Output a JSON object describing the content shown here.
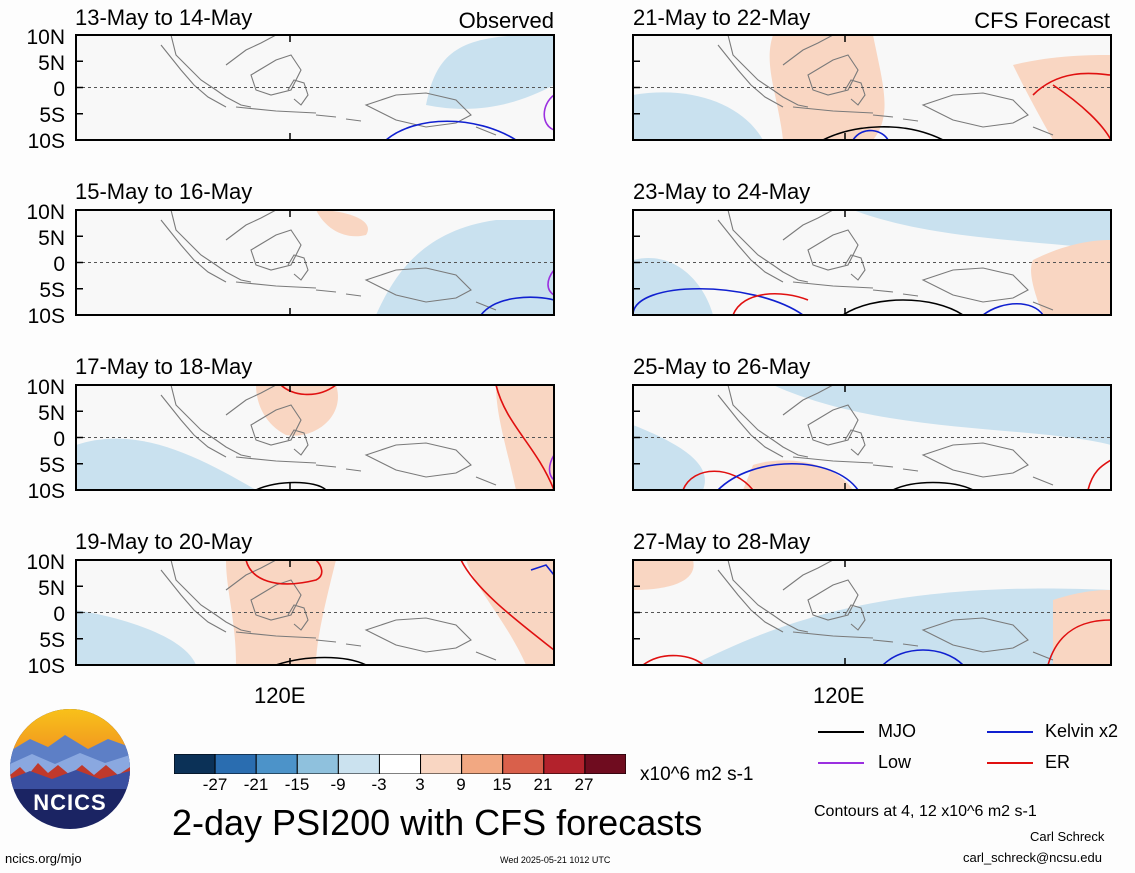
{
  "header": {
    "left_corner_label": "Observed",
    "right_corner_label": "CFS Forecast"
  },
  "lat_labels": [
    "10N",
    "5N",
    "0",
    "5S",
    "10S"
  ],
  "lon_label": "120E",
  "panels": [
    {
      "title": "13-May to 14-May",
      "column": "observed"
    },
    {
      "title": "15-May to 16-May",
      "column": "observed"
    },
    {
      "title": "17-May to 18-May",
      "column": "observed"
    },
    {
      "title": "19-May to 20-May",
      "column": "observed"
    },
    {
      "title": "21-May to 22-May",
      "column": "forecast"
    },
    {
      "title": "23-May to 24-May",
      "column": "forecast"
    },
    {
      "title": "25-May to 26-May",
      "column": "forecast"
    },
    {
      "title": "27-May to 28-May",
      "column": "forecast"
    }
  ],
  "colorbar": {
    "ticks": [
      "-27",
      "-21",
      "-15",
      "-9",
      "-3",
      "3",
      "9",
      "15",
      "21",
      "27"
    ],
    "colors": [
      "#0b3157",
      "#2a6db0",
      "#4c93c9",
      "#8fc1dd",
      "#cbe2ef",
      "#ffffff",
      "#f9d6c2",
      "#f2a882",
      "#d9604b",
      "#b3222c",
      "#6f0c1f"
    ],
    "units": "x10^6 m2 s-1"
  },
  "legend": [
    {
      "label": "MJO",
      "color": "#000000"
    },
    {
      "label": "Kelvin x2",
      "color": "#1020d0"
    },
    {
      "label": "Low",
      "color": "#9b30e0"
    },
    {
      "label": "ER",
      "color": "#e01010"
    }
  ],
  "contours_note": "Contours at 4, 12 x10^6 m2 s-1",
  "main_title": "2-day PSI200 with CFS forecasts",
  "author": "Carl Schreck",
  "email": "carl_schreck@ncsu.edu",
  "url": "ncics.org/mjo",
  "timestamp": "Wed 2025-05-21 1012 UTC",
  "logo_text": "NCICS"
}
